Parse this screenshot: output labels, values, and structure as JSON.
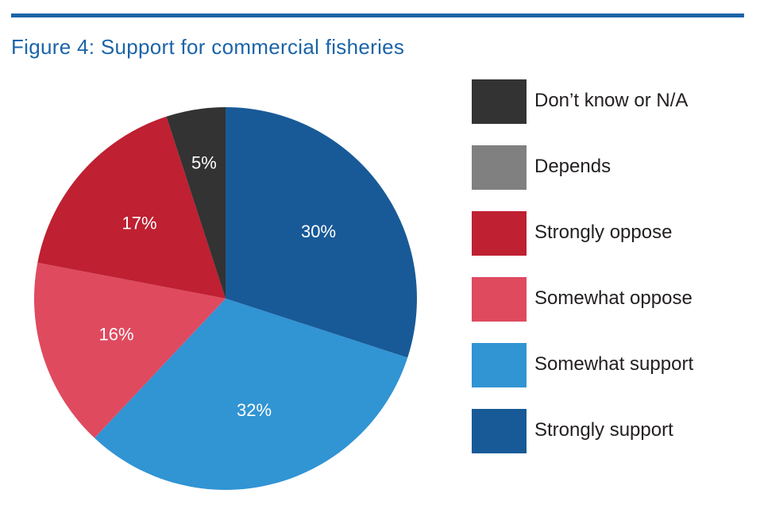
{
  "figure": {
    "title": "Figure 4: Support for commercial fisheries",
    "title_color": "#1b64a8",
    "rule_color": "#1b64a8"
  },
  "chart_data": {
    "type": "pie",
    "title": "Figure 4: Support for commercial fisheries",
    "legend_position": "right",
    "slices": [
      {
        "name": "Strongly support",
        "value": 30,
        "label": "30%",
        "color": "#185a97"
      },
      {
        "name": "Somewhat support",
        "value": 32,
        "label": "32%",
        "color": "#3194d3"
      },
      {
        "name": "Somewhat oppose",
        "value": 16,
        "label": "16%",
        "color": "#df4a5f"
      },
      {
        "name": "Strongly oppose",
        "value": 17,
        "label": "17%",
        "color": "#bf2032"
      },
      {
        "name": "Depends",
        "value": 0,
        "label": "",
        "color": "#808080"
      },
      {
        "name": "Don’t know or N/A",
        "value": 5,
        "label": "5%",
        "color": "#333333"
      }
    ],
    "legend": [
      {
        "name": "Don’t know or N/A",
        "color": "#333333"
      },
      {
        "name": "Depends",
        "color": "#808080"
      },
      {
        "name": "Strongly oppose",
        "color": "#bf2032"
      },
      {
        "name": "Somewhat oppose",
        "color": "#df4a5f"
      },
      {
        "name": "Somewhat support",
        "color": "#3194d3"
      },
      {
        "name": "Strongly support",
        "color": "#185a97"
      }
    ]
  }
}
